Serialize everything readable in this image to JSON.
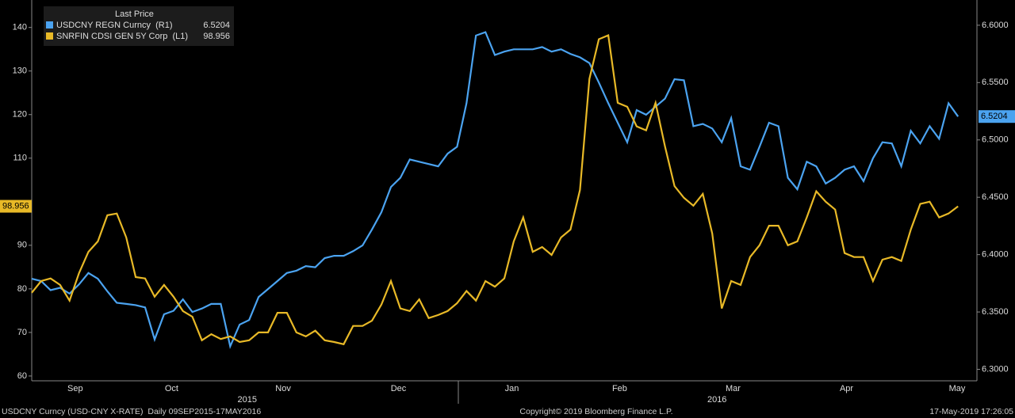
{
  "chart_data": {
    "type": "line",
    "legend_title": "Last Price",
    "x": [
      0,
      1,
      2,
      3,
      4,
      5,
      6,
      7,
      8,
      9,
      10,
      11,
      12,
      13,
      14,
      15,
      16,
      17,
      18,
      19,
      20,
      21,
      22,
      23,
      24,
      25,
      26,
      27,
      28,
      29,
      30,
      31,
      32,
      33,
      34,
      35,
      36,
      37,
      38,
      39,
      40,
      41,
      42,
      43,
      44,
      45,
      46,
      47,
      48,
      49,
      50,
      51,
      52,
      53,
      54,
      55,
      56,
      57,
      58,
      59,
      60,
      61,
      62,
      63,
      64,
      65,
      66,
      67,
      68,
      69,
      70,
      71,
      72,
      73,
      74,
      75,
      76,
      77,
      78,
      79,
      80,
      81,
      82,
      83,
      84,
      85,
      86,
      87,
      88,
      89,
      90,
      91,
      92,
      93,
      94,
      95,
      96,
      97,
      98
    ],
    "xlim": [
      0,
      100
    ],
    "xticks": [
      {
        "value": 4.6,
        "label": "Sep"
      },
      {
        "value": 14.8,
        "label": "Oct"
      },
      {
        "value": 26.6,
        "label": "Nov"
      },
      {
        "value": 38.8,
        "label": "Dec"
      },
      {
        "value": 50.8,
        "label": "Jan"
      },
      {
        "value": 62.2,
        "label": "Feb"
      },
      {
        "value": 74.2,
        "label": "Mar"
      },
      {
        "value": 86.2,
        "label": "Apr"
      },
      {
        "value": 97.9,
        "label": "May"
      }
    ],
    "year_ticks": [
      {
        "value": 22.8,
        "label": "2015"
      },
      {
        "value": 72.5,
        "label": "2016"
      }
    ],
    "ylim": [
      58.9,
      146.3
    ],
    "yticks": [
      60,
      70,
      80,
      90,
      110,
      120,
      130,
      140
    ],
    "y2lim": [
      6.29,
      6.622
    ],
    "y2ticks": [
      {
        "value": 6.3,
        "label": "6.3000"
      },
      {
        "value": 6.35,
        "label": "6.3500"
      },
      {
        "value": 6.4,
        "label": "6.4000"
      },
      {
        "value": 6.45,
        "label": "6.4500"
      },
      {
        "value": 6.5,
        "label": "6.5000"
      },
      {
        "value": 6.55,
        "label": "6.5500"
      },
      {
        "value": 6.6,
        "label": "6.6000"
      }
    ],
    "series": [
      {
        "name": "USDCNY REGN Curncy  (R1)",
        "color": "#4ba3f0",
        "axis": "y2",
        "values": [
          6.379,
          6.377,
          6.369,
          6.371,
          6.366,
          6.374,
          6.384,
          6.379,
          6.368,
          6.358,
          6.357,
          6.356,
          6.354,
          6.326,
          6.348,
          6.351,
          6.361,
          6.35,
          6.353,
          6.357,
          6.357,
          6.32,
          6.339,
          6.343,
          6.363,
          6.37,
          6.377,
          6.384,
          6.386,
          6.39,
          6.389,
          6.397,
          6.399,
          6.399,
          6.403,
          6.408,
          6.422,
          6.437,
          6.459,
          6.467,
          6.483,
          6.481,
          6.479,
          6.477,
          6.488,
          6.494,
          6.532,
          6.591,
          6.594,
          6.574,
          6.577,
          6.579,
          6.579,
          6.579,
          6.581,
          6.577,
          6.579,
          6.575,
          6.572,
          6.567,
          6.55,
          6.532,
          6.515,
          6.498,
          6.526,
          6.522,
          6.529,
          6.536,
          6.553,
          6.552,
          6.512,
          6.514,
          6.51,
          6.498,
          6.519,
          6.477,
          6.474,
          6.494,
          6.515,
          6.512,
          6.467,
          6.457,
          6.481,
          6.477,
          6.462,
          6.467,
          6.474,
          6.477,
          6.464,
          6.484,
          6.498,
          6.497,
          6.477,
          6.508,
          6.497,
          6.512,
          6.501,
          6.532,
          6.5204
        ]
      },
      {
        "name": "SNRFIN CDSI GEN 5Y Corp  (L1)",
        "color": "#e8b927",
        "axis": "y",
        "values": [
          79.1,
          81.8,
          82.4,
          80.9,
          77.3,
          83.6,
          88.5,
          90.9,
          96.9,
          97.3,
          91.8,
          82.7,
          82.4,
          78.2,
          80.9,
          78.2,
          74.9,
          73.6,
          68.2,
          69.6,
          68.5,
          69.1,
          67.8,
          68.2,
          70.0,
          70.0,
          74.5,
          74.5,
          70.0,
          69.1,
          70.4,
          68.2,
          67.8,
          67.3,
          71.5,
          71.5,
          72.7,
          76.4,
          81.8,
          75.5,
          74.9,
          77.6,
          73.3,
          74.0,
          74.9,
          76.7,
          79.5,
          77.3,
          81.8,
          80.5,
          82.4,
          90.9,
          96.4,
          88.5,
          89.6,
          87.8,
          91.8,
          93.6,
          102.7,
          128.2,
          137.3,
          138.2,
          122.7,
          121.8,
          117.3,
          116.4,
          122.7,
          112.7,
          103.6,
          100.9,
          99.1,
          101.8,
          92.7,
          75.5,
          81.8,
          80.9,
          87.3,
          90.0,
          94.5,
          94.5,
          90.0,
          90.9,
          96.4,
          102.4,
          100.0,
          98.2,
          88.2,
          87.3,
          87.3,
          81.8,
          86.7,
          87.3,
          86.4,
          93.6,
          99.5,
          100.0,
          96.4,
          97.3,
          98.956
        ]
      }
    ]
  },
  "footer": {
    "left": "USDCNY Curncy (USD-CNY X-RATE)  Daily 09SEP2015-17MAY2016",
    "center": "Copyright© 2019 Bloomberg Finance L.P.",
    "right": "17-May-2019 17:26:05"
  }
}
